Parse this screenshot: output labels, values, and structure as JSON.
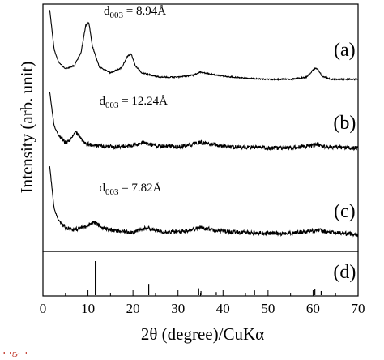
{
  "chart_data": {
    "type": "line",
    "xlabel": "2θ (degree)/CuKα",
    "ylabel": "Intensity (arb. unit)",
    "xlim": [
      0,
      70
    ],
    "xticks": [
      0,
      10,
      20,
      30,
      40,
      50,
      60,
      70
    ],
    "series": [
      {
        "name": "(a)",
        "annotation": {
          "prefix": "d",
          "sub": "003",
          "text": " = 8.94Å"
        },
        "x": [
          1.5,
          2.5,
          3.5,
          5,
          7,
          8.5,
          9.5,
          10.2,
          11,
          12.5,
          15,
          17.5,
          18.8,
          19.6,
          20.5,
          22,
          26,
          30,
          33.5,
          35,
          37,
          40,
          45,
          50,
          55,
          58.5,
          60.3,
          61,
          62,
          64,
          67,
          70
        ],
        "y": [
          8,
          4.2,
          3.0,
          2.4,
          2.7,
          4.0,
          6.5,
          6.8,
          4.5,
          2.6,
          2.0,
          2.5,
          3.6,
          3.8,
          2.7,
          2.0,
          1.6,
          1.6,
          1.8,
          2.1,
          1.9,
          1.7,
          1.5,
          1.4,
          1.4,
          1.6,
          2.4,
          2.4,
          1.7,
          1.4,
          1.4,
          1.4
        ]
      },
      {
        "name": "(b)",
        "annotation": {
          "prefix": "d",
          "sub": "003",
          "text": " = 12.24Å"
        },
        "x": [
          1.5,
          2.5,
          3.5,
          5,
          6.3,
          7.2,
          8,
          9.5,
          12,
          16,
          20,
          22.5,
          25,
          30,
          33,
          35,
          38,
          42,
          50,
          55,
          59.5,
          61,
          63,
          70
        ],
        "y": [
          6,
          3.0,
          2.2,
          1.6,
          1.9,
          2.6,
          2.1,
          1.5,
          1.3,
          1.2,
          1.3,
          1.6,
          1.3,
          1.2,
          1.4,
          1.6,
          1.4,
          1.2,
          1.1,
          1.1,
          1.3,
          1.4,
          1.2,
          1.1
        ]
      },
      {
        "name": "(c)",
        "annotation": {
          "prefix": "d",
          "sub": "003",
          "text": " = 7.82Å"
        },
        "x": [
          1.5,
          2.5,
          3.5,
          5,
          7,
          9.5,
          11.3,
          13,
          16,
          20,
          22.5,
          23.3,
          25,
          30,
          33,
          35,
          38,
          42,
          50,
          55,
          59.5,
          61,
          63,
          70
        ],
        "y": [
          7,
          3.2,
          2.2,
          1.6,
          1.4,
          1.7,
          2.1,
          1.6,
          1.3,
          1.2,
          1.5,
          1.6,
          1.3,
          1.2,
          1.4,
          1.6,
          1.4,
          1.2,
          1.1,
          1.1,
          1.3,
          1.4,
          1.2,
          1.0
        ]
      }
    ],
    "reference_sticks": {
      "name": "(d)",
      "x": [
        11.7,
        23.5,
        34.6,
        35.1,
        38.5,
        47.0,
        60.4,
        61.8
      ],
      "heights": [
        1.0,
        0.33,
        0.2,
        0.12,
        0.09,
        0.14,
        0.18,
        0.12
      ]
    }
  }
}
